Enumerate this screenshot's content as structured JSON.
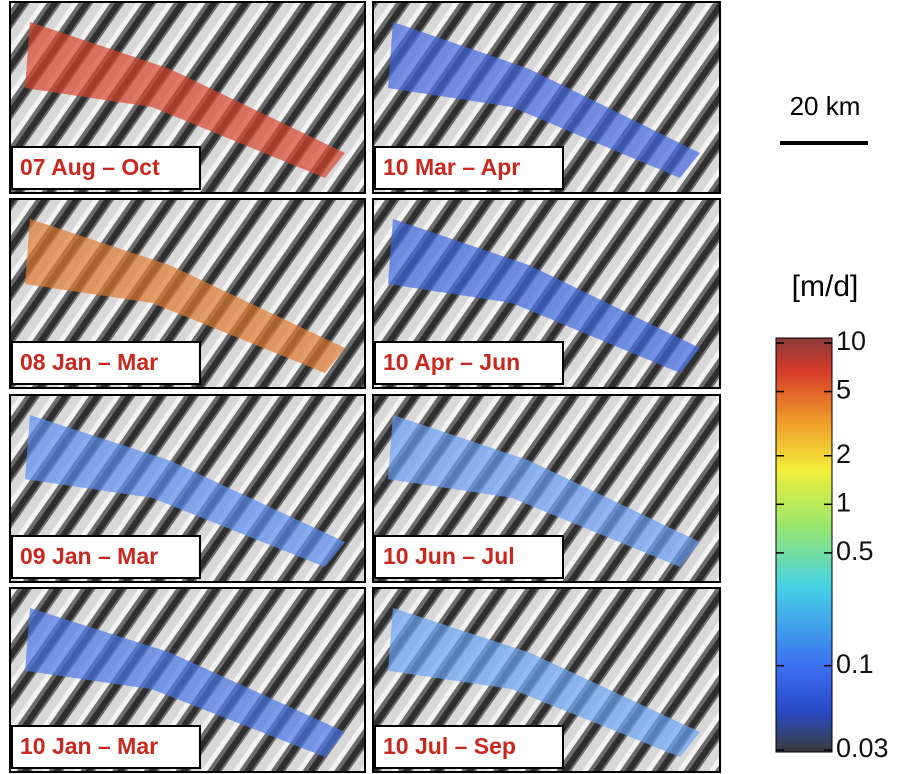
{
  "panels": [
    {
      "label": "07 Aug – Oct"
    },
    {
      "label": "08 Jan – Mar"
    },
    {
      "label": "09 Jan – Mar"
    },
    {
      "label": "10 Jan – Mar"
    },
    {
      "label": "10 Mar – Apr"
    },
    {
      "label": "10 Apr – Jun"
    },
    {
      "label": "10 Jun – Jul"
    },
    {
      "label": "10 Jul – Sep"
    }
  ],
  "scale_bar": {
    "label": "20 km"
  },
  "colorbar": {
    "label": "[m/d]",
    "scale": "log",
    "lim": [
      0.03,
      10
    ],
    "ticks": [
      10,
      5,
      2,
      1,
      0.5,
      0.1,
      0.03
    ]
  }
}
